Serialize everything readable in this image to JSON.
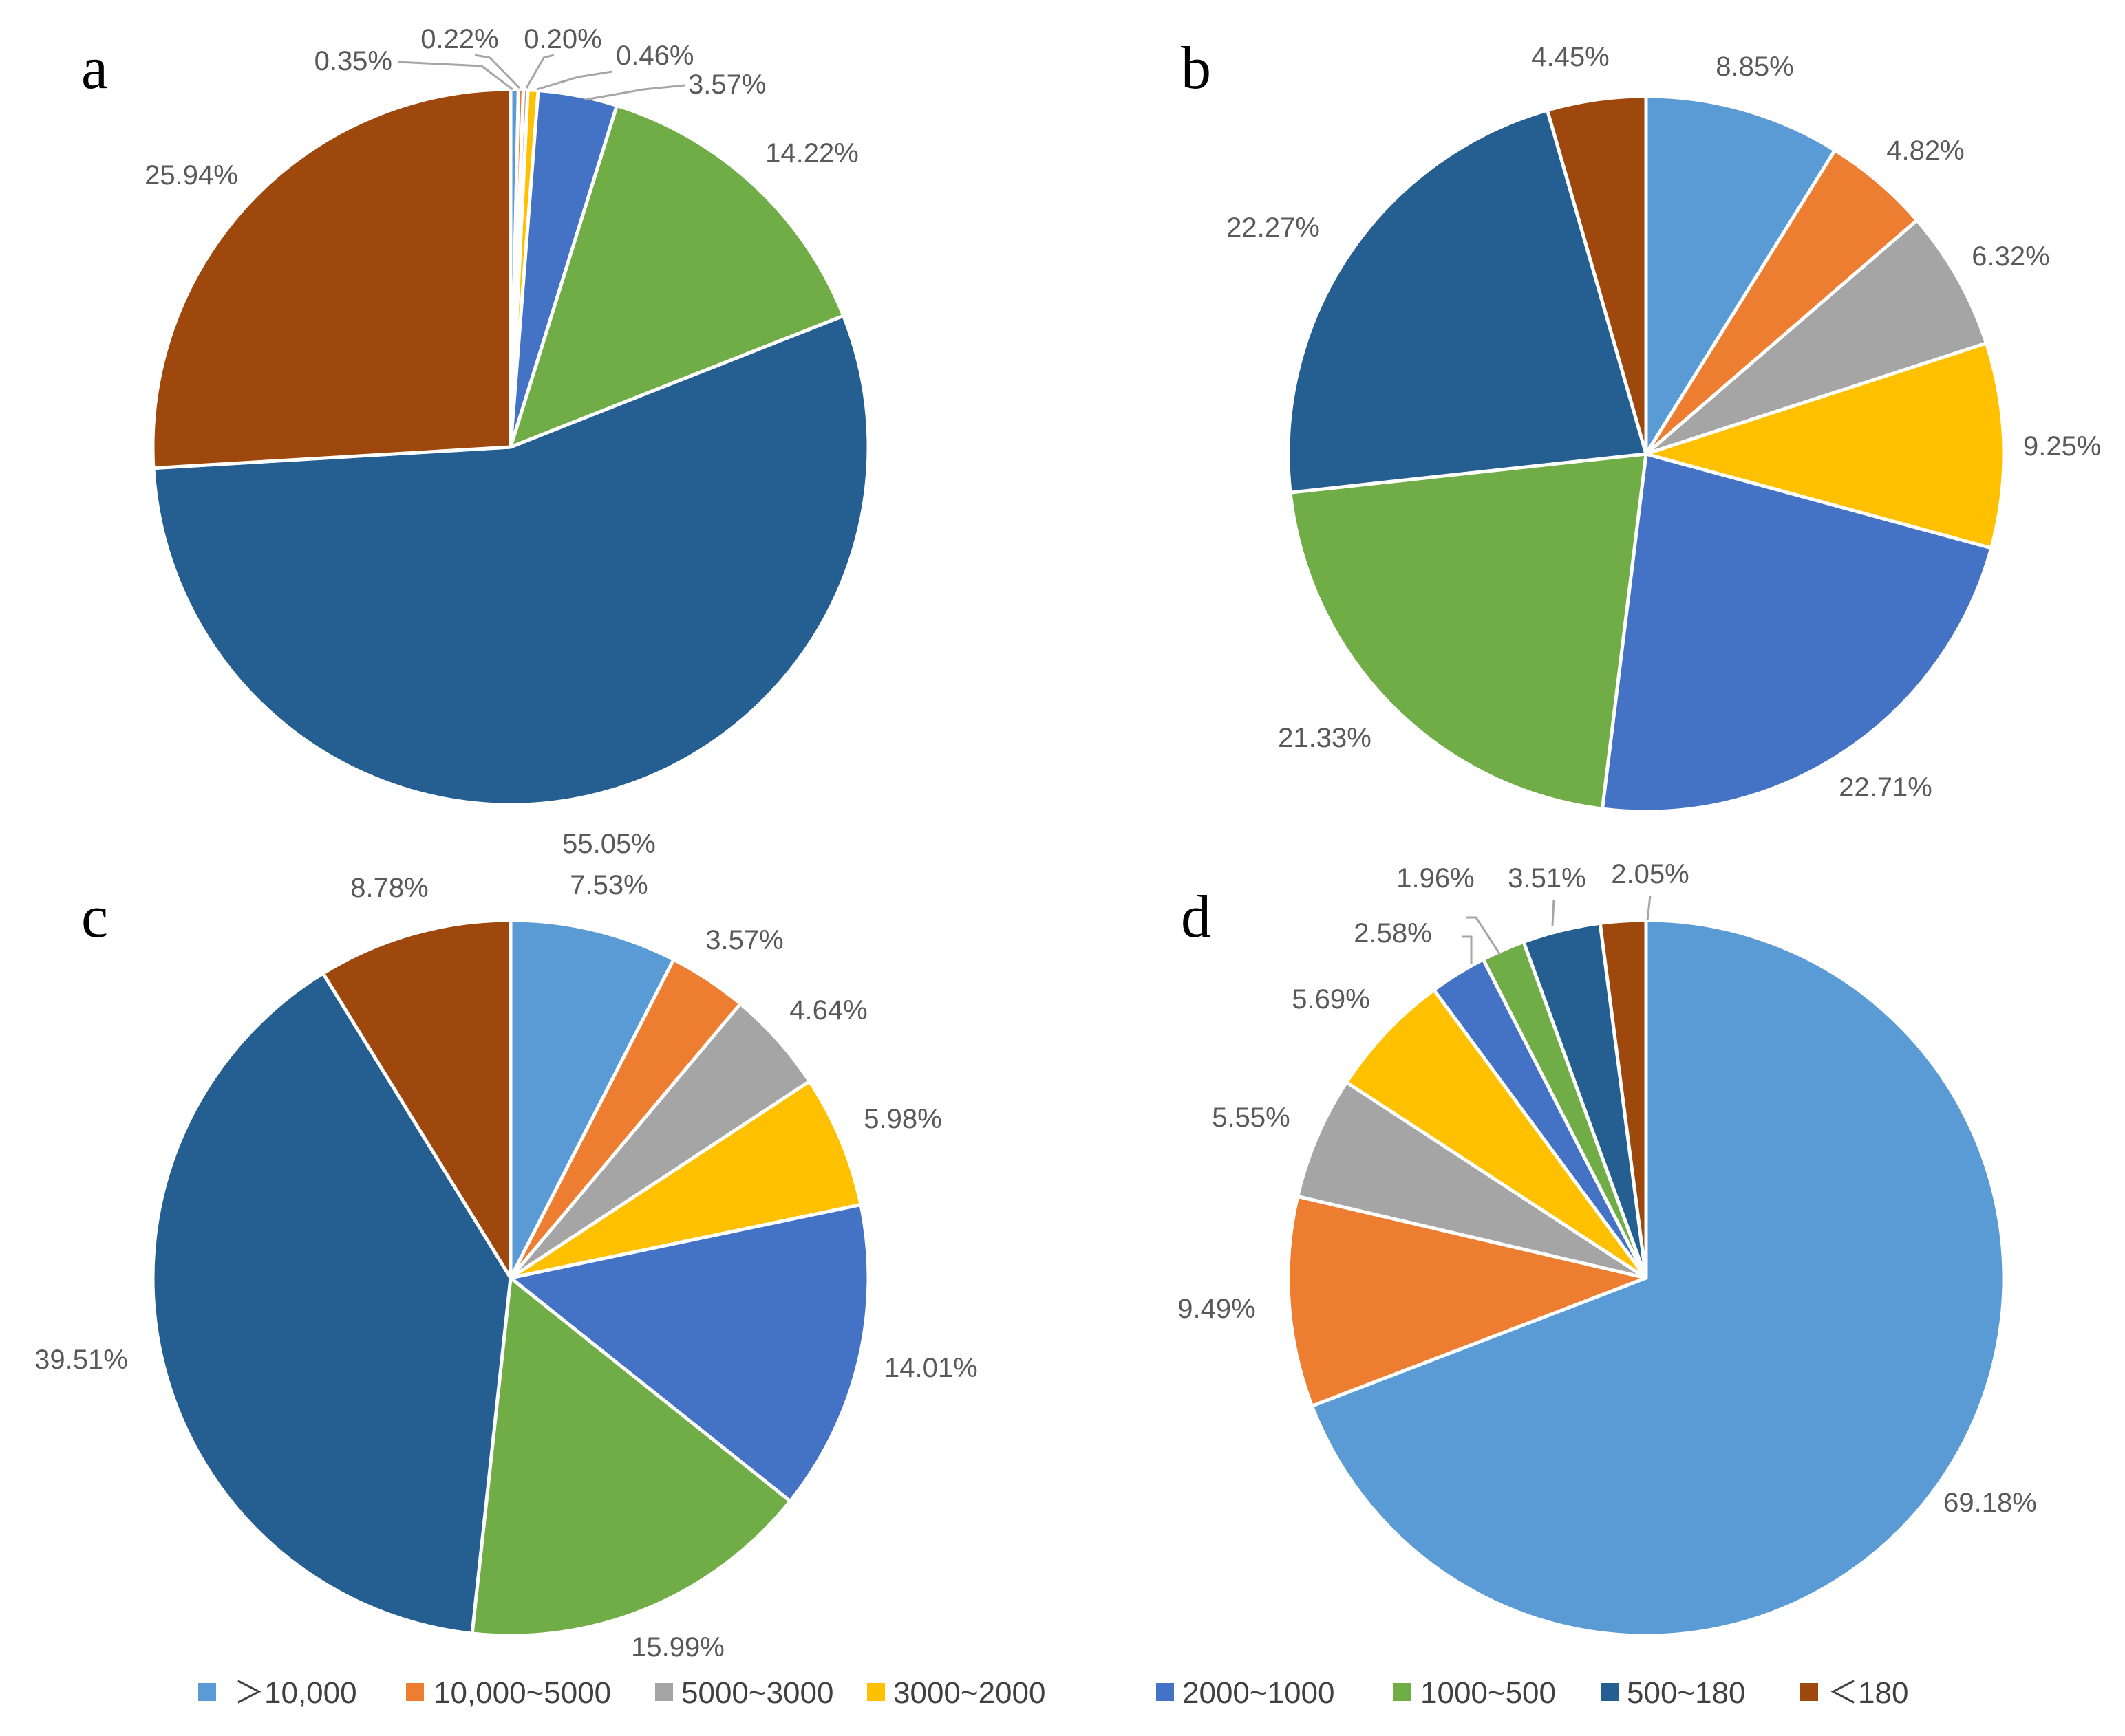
{
  "chart_data": [
    {
      "type": "pie",
      "panel": "a",
      "categories": [
        ">10,000",
        "10,000~5000",
        "5000~3000",
        "3000~2000",
        "2000~1000",
        "1000~500",
        "500~180",
        "<180"
      ],
      "values": [
        0.35,
        0.22,
        0.2,
        0.46,
        3.57,
        14.22,
        55.05,
        25.94
      ],
      "labels": [
        "0.35%",
        "0.22%",
        "0.20%",
        "0.46%",
        "3.57%",
        "14.22%",
        "55.05%",
        "25.94%"
      ]
    },
    {
      "type": "pie",
      "panel": "b",
      "categories": [
        ">10,000",
        "10,000~5000",
        "5000~3000",
        "3000~2000",
        "2000~1000",
        "1000~500",
        "500~180",
        "<180"
      ],
      "values": [
        8.85,
        4.82,
        6.32,
        9.25,
        22.71,
        21.33,
        22.27,
        4.45
      ],
      "labels": [
        "8.85%",
        "4.82%",
        "6.32%",
        "9.25%",
        "22.71%",
        "21.33%",
        "22.27%",
        "4.45%"
      ]
    },
    {
      "type": "pie",
      "panel": "c",
      "categories": [
        ">10,000",
        "10,000~5000",
        "5000~3000",
        "3000~2000",
        "2000~1000",
        "1000~500",
        "500~180",
        "<180"
      ],
      "values": [
        7.53,
        3.57,
        4.64,
        5.98,
        14.01,
        15.99,
        39.51,
        8.78
      ],
      "labels": [
        "7.53%",
        "3.57%",
        "4.64%",
        "5.98%",
        "14.01%",
        "15.99%",
        "39.51%",
        "8.78%"
      ]
    },
    {
      "type": "pie",
      "panel": "d",
      "categories": [
        ">10,000",
        "10,000~5000",
        "5000~3000",
        "3000~2000",
        "2000~1000",
        "1000~500",
        "500~180",
        "<180"
      ],
      "values": [
        69.18,
        9.49,
        5.55,
        5.69,
        2.58,
        1.96,
        3.51,
        2.05
      ],
      "labels": [
        "69.18%",
        "9.49%",
        "5.55%",
        "5.69%",
        "2.58%",
        "1.96%",
        "3.51%",
        "2.05%"
      ]
    }
  ],
  "legend": {
    "items": [
      {
        "label": "＞10,000",
        "color": "#5b9bd5"
      },
      {
        "label": "10,000~5000",
        "color": "#ed7d31"
      },
      {
        "label": "5000~3000",
        "color": "#a5a5a5"
      },
      {
        "label": "3000~2000",
        "color": "#ffc000"
      },
      {
        "label": "2000~1000",
        "color": "#4472c4"
      },
      {
        "label": "1000~500",
        "color": "#70ad47"
      },
      {
        "label": "500~180",
        "color": "#255e91"
      },
      {
        "label": "＜180",
        "color": "#9e480e"
      }
    ]
  }
}
